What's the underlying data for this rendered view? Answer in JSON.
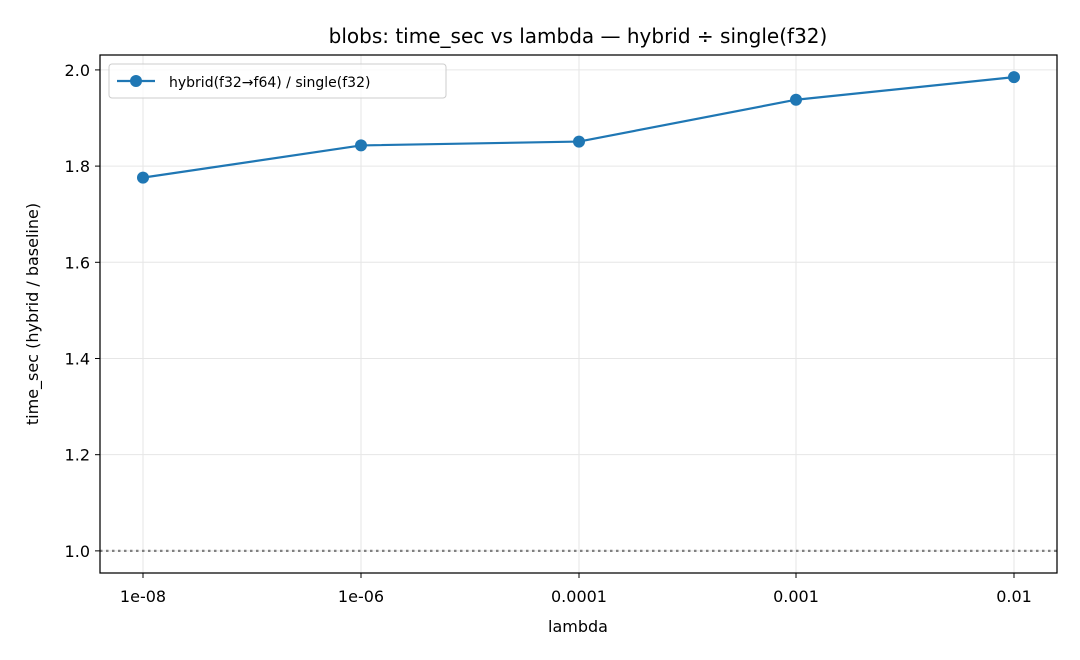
{
  "chart_data": {
    "type": "line",
    "title": "blobs: time_sec vs lambda — hybrid ÷ single(f32)",
    "xlabel": "lambda",
    "ylabel": "time_sec (hybrid / baseline)",
    "categories": [
      "1e-08",
      "1e-06",
      "0.0001",
      "0.001",
      "0.01"
    ],
    "series": [
      {
        "name": "hybrid(f32→f64) / single(f32)",
        "values": [
          1.776,
          1.843,
          1.851,
          1.938,
          1.985
        ],
        "color": "#1f77b4",
        "marker": "circle"
      }
    ],
    "yticks": [
      "1.0",
      "1.2",
      "1.4",
      "1.6",
      "1.8",
      "2.0"
    ],
    "ylim": [
      0.954,
      2.031
    ],
    "reference_line": {
      "y": 1.0,
      "style": "dotted",
      "color": "#808080"
    },
    "grid": true,
    "legend_position": "top-left"
  }
}
